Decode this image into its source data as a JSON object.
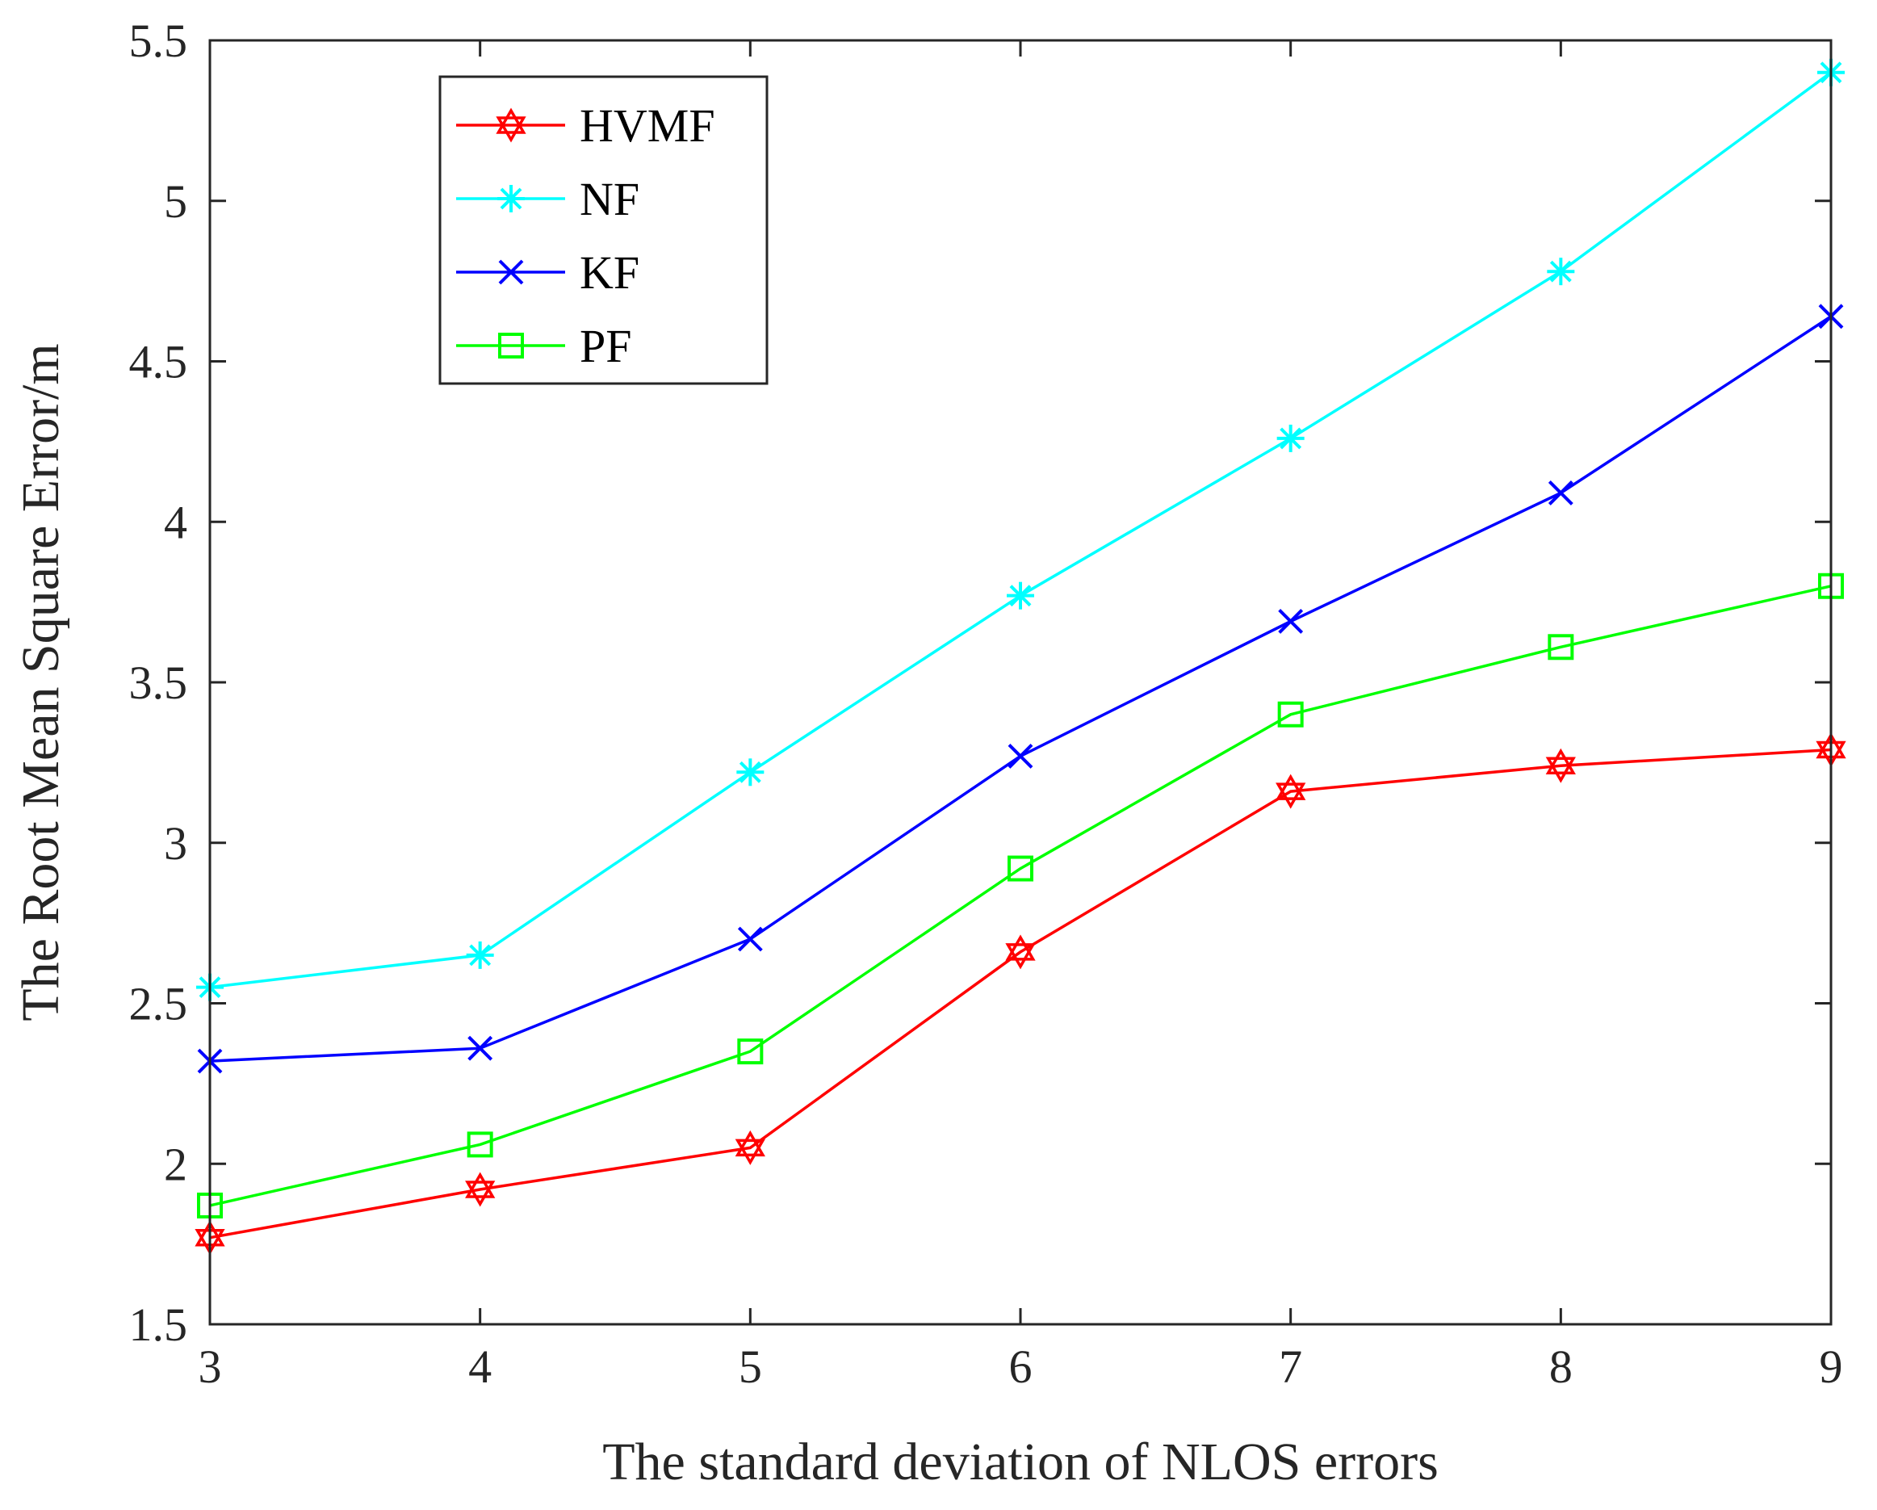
{
  "chart_data": {
    "type": "line",
    "title": "",
    "xlabel": "The standard deviation of NLOS errors",
    "ylabel": "The Root Mean Square Error/m",
    "x": [
      3,
      4,
      5,
      6,
      7,
      8,
      9
    ],
    "xlim": [
      3,
      9
    ],
    "ylim": [
      1.5,
      5.5
    ],
    "xticks": [
      "3",
      "4",
      "5",
      "6",
      "7",
      "8",
      "9"
    ],
    "yticks": [
      "1.5",
      "2",
      "2.5",
      "3",
      "3.5",
      "4",
      "4.5",
      "5",
      "5.5"
    ],
    "grid": false,
    "legend_position": "top-left",
    "series": [
      {
        "name": "HVMF",
        "color": "#ff0000",
        "marker": "hexagram",
        "values": [
          1.77,
          1.92,
          2.05,
          2.66,
          3.16,
          3.24,
          3.29
        ]
      },
      {
        "name": "NF",
        "color": "#00ffff",
        "marker": "asterisk",
        "values": [
          2.55,
          2.65,
          3.22,
          3.77,
          4.26,
          4.78,
          5.4
        ]
      },
      {
        "name": "KF",
        "color": "#0000ff",
        "marker": "x",
        "values": [
          2.32,
          2.36,
          2.7,
          3.27,
          3.69,
          4.09,
          4.64
        ]
      },
      {
        "name": "PF",
        "color": "#00ff00",
        "marker": "square",
        "values": [
          1.87,
          2.06,
          2.35,
          2.92,
          3.4,
          3.61,
          3.8
        ]
      }
    ]
  }
}
